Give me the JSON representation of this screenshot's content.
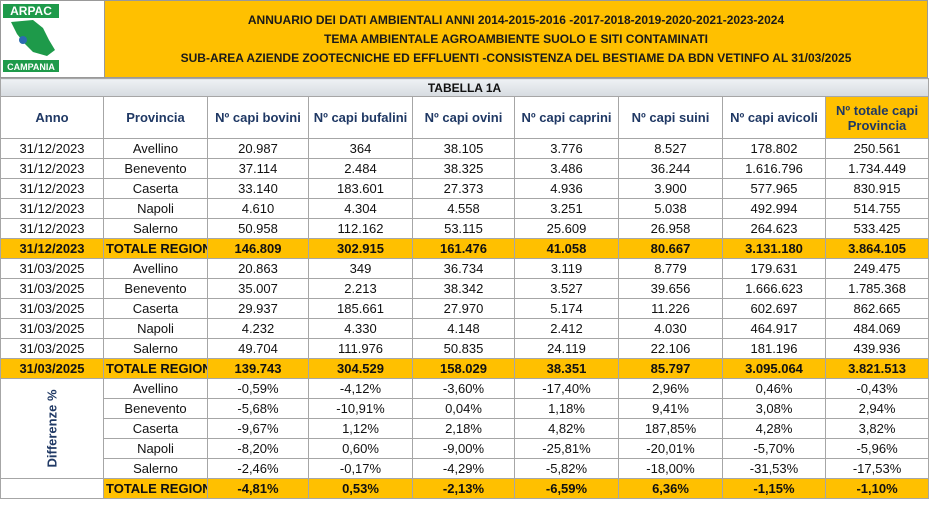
{
  "header": {
    "logo_top": "ARPAC",
    "logo_bottom": "CAMPANIA",
    "title_lines": [
      "ANNUARIO DEI DATI AMBIENTALI ANNI 2014-2015-2016 -2017-2018-2019-2020-2021-2023-2024",
      "TEMA AMBIENTALE AGROAMBIENTE SUOLO E SITI CONTAMINATI",
      "SUB-AREA AZIENDE ZOOTECNICHE ED EFFLUENTI -CONSISTENZA DEL BESTIAME  DA BDN VETINFO AL 31/03/2025"
    ]
  },
  "table": {
    "caption": "TABELLA 1A",
    "columns": [
      "Anno",
      "Provincia",
      "Nº capi bovini",
      "Nº capi bufalini",
      "Nº capi ovini",
      "Nº capi caprini",
      "Nº capi suini",
      "Nº capi avicoli",
      "Nº totale capi Provincia"
    ],
    "rows": [
      [
        "31/12/2023",
        "Avellino",
        "20.987",
        "364",
        "38.105",
        "3.776",
        "8.527",
        "178.802",
        "250.561"
      ],
      [
        "31/12/2023",
        "Benevento",
        "37.114",
        "2.484",
        "38.325",
        "3.486",
        "36.244",
        "1.616.796",
        "1.734.449"
      ],
      [
        "31/12/2023",
        "Caserta",
        "33.140",
        "183.601",
        "27.373",
        "4.936",
        "3.900",
        "577.965",
        "830.915"
      ],
      [
        "31/12/2023",
        "Napoli",
        "4.610",
        "4.304",
        "4.558",
        "3.251",
        "5.038",
        "492.994",
        "514.755"
      ],
      [
        "31/12/2023",
        "Salerno",
        "50.958",
        "112.162",
        "53.115",
        "25.609",
        "26.958",
        "264.623",
        "533.425"
      ],
      [
        "31/12/2023",
        "TOTALE REGIONE",
        "146.809",
        "302.915",
        "161.476",
        "41.058",
        "80.667",
        "3.131.180",
        "3.864.105"
      ],
      [
        "31/03/2025",
        "Avellino",
        "20.863",
        "349",
        "36.734",
        "3.119",
        "8.779",
        "179.631",
        "249.475"
      ],
      [
        "31/03/2025",
        "Benevento",
        "35.007",
        "2.213",
        "38.342",
        "3.527",
        "39.656",
        "1.666.623",
        "1.785.368"
      ],
      [
        "31/03/2025",
        "Caserta",
        "29.937",
        "185.661",
        "27.970",
        "5.174",
        "11.226",
        "602.697",
        "862.665"
      ],
      [
        "31/03/2025",
        "Napoli",
        "4.232",
        "4.330",
        "4.148",
        "2.412",
        "4.030",
        "464.917",
        "484.069"
      ],
      [
        "31/03/2025",
        "Salerno",
        "49.704",
        "111.976",
        "50.835",
        "24.119",
        "22.106",
        "181.196",
        "439.936"
      ],
      [
        "31/03/2025",
        "TOTALE REGIONE",
        "139.743",
        "304.529",
        "158.029",
        "38.351",
        "85.797",
        "3.095.064",
        "3.821.513"
      ]
    ],
    "differences_label": "Differenze %",
    "differences_rows": [
      [
        "Avellino",
        "-0,59%",
        "-4,12%",
        "-3,60%",
        "-17,40%",
        "2,96%",
        "0,46%",
        "-0,43%"
      ],
      [
        "Benevento",
        "-5,68%",
        "-10,91%",
        "0,04%",
        "1,18%",
        "9,41%",
        "3,08%",
        "2,94%"
      ],
      [
        "Caserta",
        "-9,67%",
        "1,12%",
        "2,18%",
        "4,82%",
        "187,85%",
        "4,28%",
        "3,82%"
      ],
      [
        "Napoli",
        "-8,20%",
        "0,60%",
        "-9,00%",
        "-25,81%",
        "-20,01%",
        "-5,70%",
        "-5,96%"
      ],
      [
        "Salerno",
        "-2,46%",
        "-0,17%",
        "-4,29%",
        "-5,82%",
        "-18,00%",
        "-31,53%",
        "-17,53%"
      ],
      [
        "TOTALE REGIONE",
        "-4,81%",
        "0,53%",
        "-2,13%",
        "-6,59%",
        "6,36%",
        "-1,15%",
        "-1,10%"
      ]
    ]
  }
}
